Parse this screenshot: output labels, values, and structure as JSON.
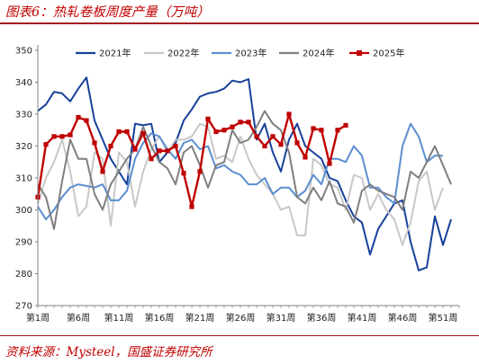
{
  "header": {
    "title": "图表6：热轧卷板周度产量（万吨）"
  },
  "footer": {
    "source": "资料来源：Mysteel，国盛证券研究所"
  },
  "chart_data": {
    "type": "line",
    "title": "图表6：热轧卷板周度产量（万吨）",
    "xlabel": "",
    "ylabel": "",
    "ylim": [
      270,
      350
    ],
    "yticks": [
      270,
      280,
      290,
      300,
      310,
      320,
      330,
      340,
      350
    ],
    "xlim": [
      1,
      53
    ],
    "xticks": [
      1,
      6,
      11,
      16,
      21,
      26,
      31,
      36,
      41,
      46,
      51
    ],
    "xtick_labels": [
      "第1周",
      "第6周",
      "第11周",
      "第16周",
      "第21周",
      "第26周",
      "第31周",
      "第36周",
      "第41周",
      "第46周",
      "第51周"
    ],
    "grid": false,
    "legend_position": "top",
    "series": [
      {
        "name": "2021年",
        "color": "#17409a",
        "marker": false,
        "values": [
          331,
          333,
          337,
          336.5,
          334,
          338,
          341.5,
          328,
          322,
          316,
          312,
          308,
          327,
          326.5,
          327,
          315,
          318,
          321,
          328,
          331.5,
          335.5,
          336.5,
          337,
          338,
          340.5,
          340,
          341,
          322,
          327,
          318,
          312,
          322,
          327,
          320,
          318,
          316,
          310,
          309,
          303,
          298,
          296,
          286,
          294,
          298,
          302,
          303,
          290,
          281,
          282,
          298,
          289,
          297
        ]
      },
      {
        "name": "2022年",
        "color": "#c8c8c8",
        "marker": false,
        "values": [
          302,
          310,
          315,
          322,
          312,
          298,
          301,
          318,
          316,
          295,
          318,
          315,
          301,
          312,
          319,
          323,
          318,
          322,
          322,
          323,
          327,
          326,
          316,
          317,
          315,
          323,
          316,
          311,
          308,
          305,
          300,
          301,
          292,
          292,
          316,
          314,
          308,
          307,
          300,
          311,
          310,
          300,
          305,
          300,
          297,
          289,
          296,
          309,
          312,
          300,
          307
        ]
      },
      {
        "name": "2023年",
        "color": "#5b8ed0",
        "marker": false,
        "values": [
          301,
          297,
          300,
          304,
          307,
          308,
          307.5,
          307,
          308,
          303,
          303,
          306,
          316,
          321,
          324,
          323,
          319,
          316,
          321,
          322,
          319,
          320,
          313,
          314,
          312,
          311,
          308,
          308,
          310,
          305,
          307,
          307,
          304,
          306,
          311,
          308,
          316,
          316,
          315,
          320,
          317,
          307,
          307,
          304,
          302,
          320,
          327,
          323,
          315,
          317,
          317
        ]
      },
      {
        "name": "2024年",
        "color": "#7f7f7f",
        "marker": false,
        "values": [
          308,
          304,
          294,
          309,
          322,
          316,
          316,
          305,
          300,
          308,
          312,
          316,
          319,
          326,
          320,
          315,
          313,
          308,
          318,
          320,
          314,
          307,
          314,
          315,
          325,
          321,
          322,
          326,
          331,
          327,
          325,
          318,
          304,
          302,
          307,
          303,
          309,
          302,
          301,
          296,
          306,
          308,
          306,
          305,
          304,
          300,
          312,
          310,
          315,
          320,
          314,
          308
        ]
      },
      {
        "name": "2025年",
        "color": "#c00000",
        "marker": true,
        "values": [
          304,
          320.5,
          323,
          323,
          323.5,
          329,
          328,
          321,
          312,
          320,
          324.5,
          324.5,
          319,
          324,
          316,
          318.5,
          318.5,
          320,
          311.5,
          301,
          312,
          328.5,
          324.5,
          325,
          326,
          327.5,
          327.5,
          323,
          320,
          323,
          320.5,
          330,
          321,
          316.5,
          325.5,
          325,
          314.5,
          325,
          326.5
        ]
      }
    ]
  }
}
